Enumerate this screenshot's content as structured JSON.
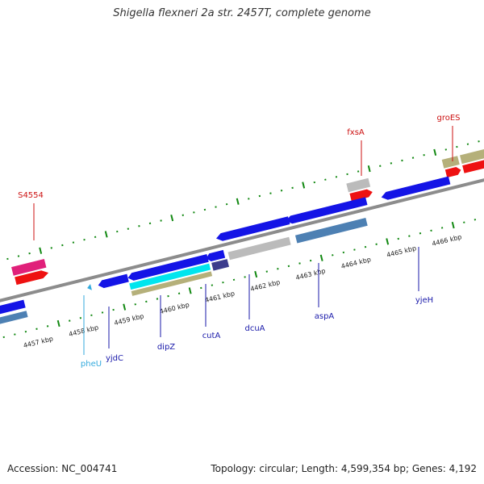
{
  "title": "Shigella flexneri 2a str. 2457T, complete genome",
  "footer": {
    "accession": "Accession: NC_004741",
    "topology": "Topology: circular; Length: 4,599,354 bp; Genes: 4,192"
  },
  "axis": {
    "unit": "kbp",
    "ticks": [
      {
        "kbp": 4457,
        "label": "4457 kbp"
      },
      {
        "kbp": 4458,
        "label": "4458 kbp"
      },
      {
        "kbp": 4459,
        "label": "4459 kbp"
      },
      {
        "kbp": 4460,
        "label": "4460 kbp"
      },
      {
        "kbp": 4461,
        "label": "4461 kbp"
      },
      {
        "kbp": 4462,
        "label": "4462 kbp"
      },
      {
        "kbp": 4463,
        "label": "4463 kbp"
      },
      {
        "kbp": 4464,
        "label": "4464 kbp"
      },
      {
        "kbp": 4465,
        "label": "4465 kbp"
      },
      {
        "kbp": 4466,
        "label": "4466 kbp"
      }
    ]
  },
  "colors": {
    "gene_forward": "#1414e6",
    "gene_reverse": "#1414e6",
    "backbone": "#8c8c8c",
    "tick": "#118811",
    "label_blue": "#1a1aaa",
    "label_red": "#cc1111",
    "label_cyan": "#33aadd",
    "cds_red": "#ee1111",
    "magenta": "#e0207a",
    "khaki": "#b5b07a",
    "steel": "#4d80b3",
    "gray": "#bbbbbb",
    "cyan": "#00e5ee",
    "slate": "#3b3b8c"
  },
  "genes": [
    {
      "name": "pheU",
      "color_key": "label_cyan"
    },
    {
      "name": "yjdC",
      "color_key": "label_blue"
    },
    {
      "name": "dipZ",
      "color_key": "label_blue"
    },
    {
      "name": "cutA",
      "color_key": "label_blue"
    },
    {
      "name": "dcuA",
      "color_key": "label_blue"
    },
    {
      "name": "aspA",
      "color_key": "label_blue"
    },
    {
      "name": "yjeH",
      "color_key": "label_blue"
    },
    {
      "name": "S4554",
      "color_key": "label_red"
    },
    {
      "name": "fxsA",
      "color_key": "label_red"
    },
    {
      "name": "groES",
      "color_key": "label_red"
    }
  ]
}
